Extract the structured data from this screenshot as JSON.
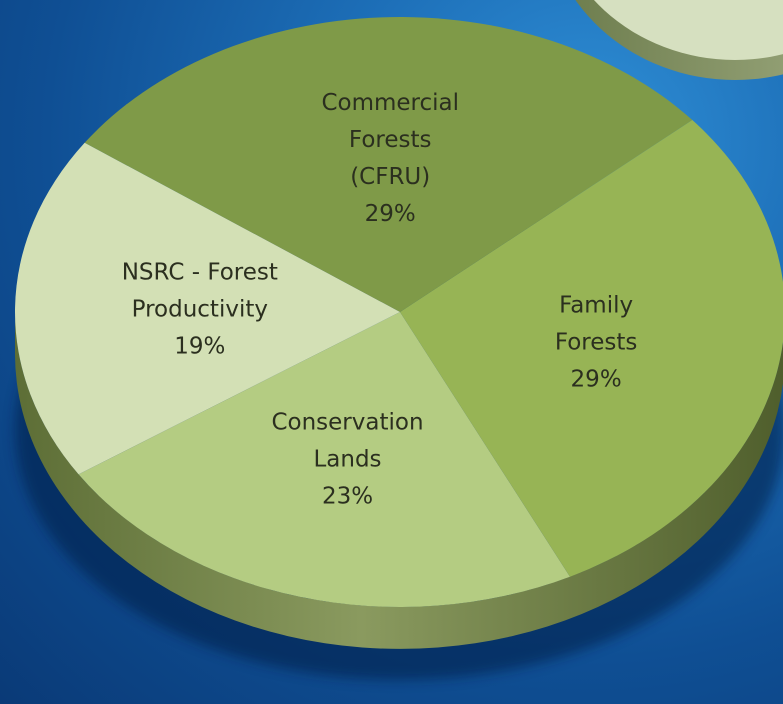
{
  "chart_data": {
    "type": "pie",
    "title": "",
    "slices": [
      {
        "lines": [
          "Commercial",
          "Forests",
          "(CFRU)",
          "29%"
        ],
        "value": 29,
        "color": "#7f9a48"
      },
      {
        "lines": [
          "Family",
          "Forests",
          "29%"
        ],
        "value": 29,
        "color": "#97b455"
      },
      {
        "lines": [
          "Conservation",
          "Lands",
          "23%"
        ],
        "value": 23,
        "color": "#b4cc82"
      },
      {
        "lines": [
          "NSRC - Forest",
          "Productivity",
          "19%"
        ],
        "value": 19,
        "color": "#d3e0b5"
      }
    ]
  }
}
